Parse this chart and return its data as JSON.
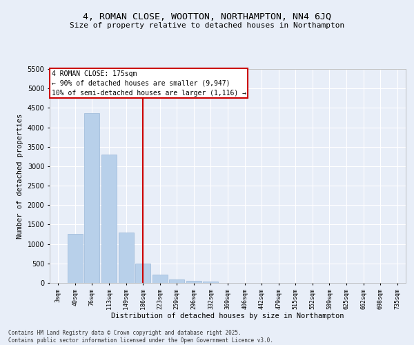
{
  "title": "4, ROMAN CLOSE, WOOTTON, NORTHAMPTON, NN4 6JQ",
  "subtitle": "Size of property relative to detached houses in Northampton",
  "xlabel": "Distribution of detached houses by size in Northampton",
  "ylabel": "Number of detached properties",
  "categories": [
    "3sqm",
    "40sqm",
    "76sqm",
    "113sqm",
    "149sqm",
    "186sqm",
    "223sqm",
    "259sqm",
    "296sqm",
    "332sqm",
    "369sqm",
    "406sqm",
    "442sqm",
    "479sqm",
    "515sqm",
    "552sqm",
    "589sqm",
    "625sqm",
    "662sqm",
    "698sqm",
    "735sqm"
  ],
  "values": [
    0,
    1260,
    4360,
    3300,
    1290,
    500,
    205,
    80,
    58,
    40,
    0,
    0,
    0,
    0,
    0,
    0,
    0,
    0,
    0,
    0,
    0
  ],
  "bar_color": "#b8d0ea",
  "bar_edge_color": "#9ab8d8",
  "vline_x_index": 5,
  "vline_color": "#cc0000",
  "annotation_text": "4 ROMAN CLOSE: 175sqm\n← 90% of detached houses are smaller (9,947)\n10% of semi-detached houses are larger (1,116) →",
  "annotation_box_color": "#cc0000",
  "ylim": [
    0,
    5500
  ],
  "yticks": [
    0,
    500,
    1000,
    1500,
    2000,
    2500,
    3000,
    3500,
    4000,
    4500,
    5000,
    5500
  ],
  "background_color": "#e8eef8",
  "grid_color": "#ffffff",
  "footer_line1": "Contains HM Land Registry data © Crown copyright and database right 2025.",
  "footer_line2": "Contains public sector information licensed under the Open Government Licence v3.0."
}
